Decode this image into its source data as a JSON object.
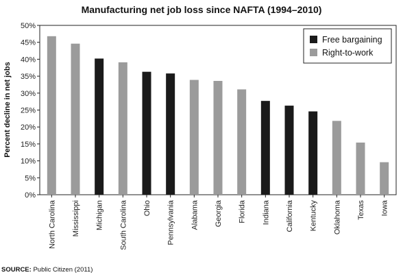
{
  "chart_data": {
    "type": "bar",
    "title": "Manufacturing net job loss since NAFTA (1994–2010)",
    "ylabel": "Percent decline in net jobs",
    "xlabel": "",
    "ylim": [
      0,
      50
    ],
    "yticks": [
      "0%",
      "5%",
      "10%",
      "15%",
      "20%",
      "25%",
      "30%",
      "35%",
      "40%",
      "45%",
      "50%"
    ],
    "grid": false,
    "legend_position": "top-right",
    "categories": [
      "North Carolina",
      "Mississippi",
      "Michigan",
      "South Carolina",
      "Ohio",
      "Pennsylvania",
      "Alabama",
      "Georgia",
      "Florida",
      "Indiana",
      "California",
      "Kentucky",
      "Oklahoma",
      "Texas",
      "Iowa"
    ],
    "values": [
      46.8,
      44.6,
      40.2,
      39.1,
      36.3,
      35.8,
      33.9,
      33.6,
      31.1,
      27.7,
      26.3,
      24.6,
      21.8,
      15.4,
      9.6
    ],
    "groups": [
      "Right-to-work",
      "Right-to-work",
      "Free bargaining",
      "Right-to-work",
      "Free bargaining",
      "Free bargaining",
      "Right-to-work",
      "Right-to-work",
      "Right-to-work",
      "Free bargaining",
      "Free bargaining",
      "Free bargaining",
      "Right-to-work",
      "Right-to-work",
      "Right-to-work"
    ],
    "legend": [
      {
        "name": "Free bargaining",
        "color": "#1a1a1a"
      },
      {
        "name": "Right-to-work",
        "color": "#9b9b9b"
      }
    ]
  },
  "source": {
    "label": "SOURCE:",
    "text": " Public Citizen (2011)"
  }
}
